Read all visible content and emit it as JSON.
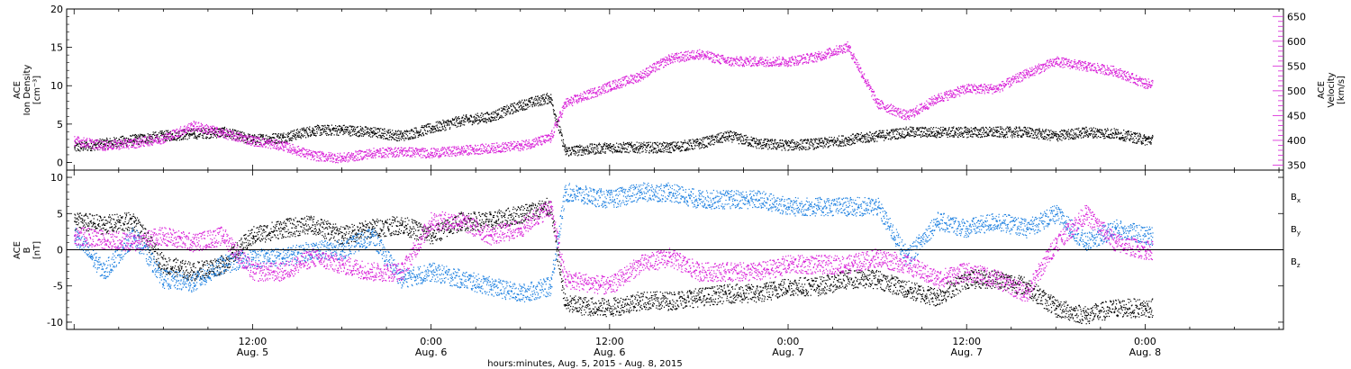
{
  "colors": {
    "black": "#000000",
    "magenta": "#d81fd8",
    "blue": "#1b7fe0"
  },
  "chart_data": [
    {
      "type": "scatter",
      "panel": "top",
      "ylabel_left": "ACE Ion Density [cm⁻³]",
      "ylabel_left_lines": [
        "ACE",
        "Ion Density",
        "[cm⁻³]"
      ],
      "ylabel_right": "ACE Velocity [km/s]",
      "ylabel_right_lines": [
        "ACE",
        "Velocity",
        "[km/s]"
      ],
      "ylim_left": [
        -1,
        20
      ],
      "ylim_right": [
        340,
        665
      ],
      "yticks_left": [
        0,
        5,
        10,
        15,
        20
      ],
      "yticks_right": [
        350,
        400,
        450,
        500,
        550,
        600,
        650
      ],
      "series": [
        {
          "color": "black",
          "axis": "left",
          "x": [
            0,
            2,
            4,
            6,
            8,
            10,
            12,
            14,
            16,
            18,
            20,
            22,
            24,
            26,
            28,
            30,
            32,
            33,
            36,
            38,
            40,
            42,
            44,
            46,
            48,
            50,
            52,
            54,
            56,
            58,
            60,
            62,
            64,
            66,
            68,
            70,
            72
          ],
          "values": [
            2,
            2.5,
            3,
            3.5,
            3.8,
            4,
            3,
            3.3,
            4.2,
            4.3,
            4,
            3.5,
            4.5,
            5.5,
            6,
            7.5,
            8.5,
            1.5,
            2,
            2,
            2,
            2.5,
            3.5,
            2.5,
            2.3,
            2.5,
            3,
            3.5,
            4,
            4,
            4,
            4,
            4,
            3.5,
            4,
            3.8,
            3
          ]
        },
        {
          "color": "magenta",
          "axis": "right",
          "x": [
            0,
            2,
            4,
            6,
            8,
            10,
            12,
            14,
            16,
            18,
            20,
            22,
            24,
            26,
            28,
            30,
            32,
            33,
            36,
            38,
            40,
            42,
            44,
            46,
            48,
            50,
            52,
            54,
            56,
            58,
            60,
            62,
            64,
            66,
            68,
            70,
            72
          ],
          "values": [
            400,
            390,
            395,
            405,
            430,
            415,
            400,
            390,
            370,
            365,
            375,
            378,
            375,
            380,
            385,
            390,
            405,
            475,
            510,
            530,
            565,
            575,
            560,
            560,
            560,
            570,
            590,
            475,
            450,
            485,
            505,
            505,
            535,
            560,
            550,
            540,
            515
          ]
        }
      ]
    },
    {
      "type": "scatter",
      "panel": "bottom",
      "ylabel": "ACE B [nT]",
      "ylabel_lines": [
        "ACE",
        "B",
        "[nT]"
      ],
      "ylim": [
        -11,
        11
      ],
      "yticks": [
        -10,
        -5,
        0,
        5,
        10
      ],
      "legend": [
        "Bx",
        "By",
        "Bz"
      ],
      "series": [
        {
          "name": "Bx",
          "color": "black",
          "x": [
            0,
            2,
            4,
            6,
            8,
            10,
            12,
            14,
            16,
            18,
            20,
            22,
            24,
            26,
            28,
            30,
            32,
            33,
            36,
            38,
            40,
            42,
            44,
            46,
            48,
            50,
            52,
            54,
            56,
            58,
            60,
            62,
            64,
            66,
            68,
            70,
            72
          ],
          "values": [
            4,
            3.5,
            4,
            -2,
            -3,
            -2,
            2,
            3,
            3.5,
            2,
            3,
            3.5,
            2,
            4,
            4,
            5,
            6,
            -7.5,
            -8,
            -7,
            -7,
            -6.5,
            -6,
            -6,
            -5,
            -5,
            -4,
            -4,
            -5.5,
            -6.5,
            -4,
            -4,
            -5,
            -8,
            -9,
            -8,
            -8
          ]
        },
        {
          "name": "By",
          "color": "blue",
          "x": [
            0,
            2,
            4,
            6,
            8,
            10,
            12,
            14,
            16,
            18,
            20,
            22,
            24,
            26,
            28,
            30,
            32,
            33,
            36,
            38,
            40,
            42,
            44,
            46,
            48,
            50,
            52,
            54,
            56,
            58,
            60,
            62,
            64,
            66,
            68,
            70,
            72
          ],
          "values": [
            2,
            -3,
            2,
            -4,
            -4.5,
            -2,
            -1,
            -1,
            0,
            0,
            2,
            -4,
            -3,
            -4,
            -5,
            -6,
            -5,
            8,
            7,
            8,
            8,
            7,
            7,
            7,
            6,
            6,
            6,
            6,
            -1,
            4,
            3,
            4,
            3,
            5,
            1,
            3,
            2
          ]
        },
        {
          "name": "Bz",
          "color": "magenta",
          "x": [
            0,
            2,
            4,
            6,
            8,
            10,
            12,
            14,
            16,
            18,
            20,
            22,
            24,
            26,
            28,
            30,
            32,
            33,
            36,
            38,
            40,
            42,
            44,
            46,
            48,
            50,
            52,
            54,
            56,
            58,
            60,
            62,
            64,
            66,
            68,
            70,
            72
          ],
          "values": [
            2,
            1.5,
            1,
            2,
            1,
            2,
            -3,
            -3,
            -1,
            -2,
            -3,
            -3,
            4,
            4,
            2,
            3,
            6,
            -4,
            -5,
            -2,
            -1,
            -3,
            -3,
            -3,
            -2,
            -2,
            -2,
            -1,
            -2,
            -4,
            -3,
            -4,
            -6,
            1,
            5,
            1,
            0
          ]
        }
      ]
    }
  ],
  "x_axis": {
    "xlim": [
      -0.5,
      81.3
    ],
    "tick_times": [
      "12:00",
      "0:00",
      "12:00",
      "0:00",
      "12:00",
      "0:00"
    ],
    "tick_dates": [
      "Aug. 5",
      "Aug. 6",
      "Aug. 6",
      "Aug. 7",
      "Aug. 7",
      "Aug. 8"
    ],
    "tick_hours": [
      12,
      24,
      36,
      48,
      60,
      72
    ],
    "xlabel": "hours:minutes, Aug.  5, 2015 - Aug.  8, 2015"
  }
}
